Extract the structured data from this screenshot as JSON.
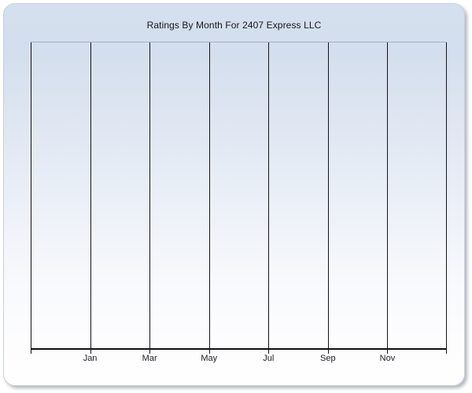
{
  "chart": {
    "title": "Ratings By Month For 2407 Express LLC",
    "x_tick_labels": [
      "Jan",
      "Mar",
      "May",
      "Jul",
      "Sep",
      "Nov"
    ]
  },
  "chart_data": {
    "type": "line",
    "title": "Ratings By Month For 2407 Express LLC",
    "xlabel": "",
    "ylabel": "",
    "x_tick_labels": [
      "Jan",
      "Mar",
      "May",
      "Jul",
      "Sep",
      "Nov"
    ],
    "y_tick_labels": [],
    "series": [],
    "note": "empty chart area - no data points, bars or lines are plotted",
    "grid": "vertical gridlines only, 8 lines evenly spaced, ticks every 2 months",
    "legend_position": "none",
    "colors": {
      "panel_gradient_top": "#d5e0ef",
      "panel_gradient_bottom": "#fefeff",
      "gridline": "#131318",
      "axis": "#101015",
      "plot_top_border": "#a8b0bf",
      "title_text": "#15151e",
      "tick_label_text": "#1c1c26",
      "page_background": "#ffffff"
    }
  }
}
